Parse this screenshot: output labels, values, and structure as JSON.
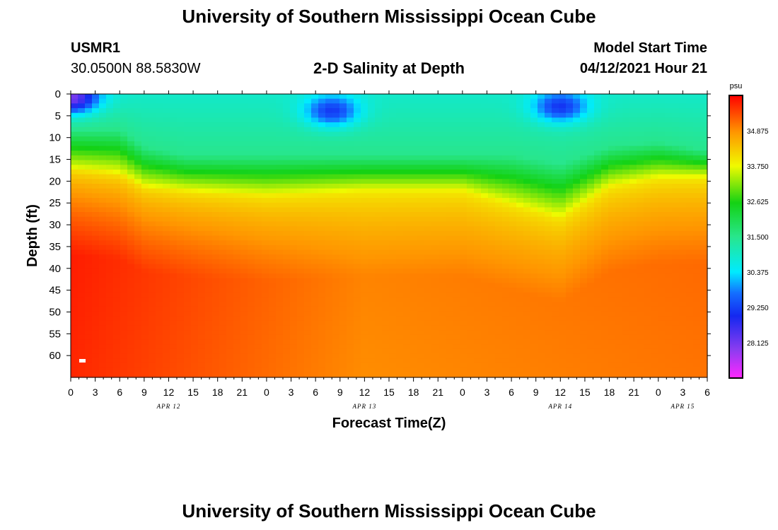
{
  "header": {
    "title": "University of Southern Mississippi Ocean Cube",
    "station_id": "USMR1",
    "coordinates": "30.0500N  88.5830W",
    "subtitle": "2-D Salinity at Depth",
    "model_start_label": "Model Start Time",
    "model_start_value": "04/12/2021 Hour 21"
  },
  "footer": {
    "title": "University of Southern Mississippi Ocean Cube"
  },
  "chart_data": {
    "type": "heatmap",
    "title": "2-D Salinity at Depth",
    "xlabel": "Forecast Time(Z)",
    "ylabel": "Depth (ft)",
    "xlim": [
      0,
      78
    ],
    "ylim": [
      0,
      65
    ],
    "x_ticks": [
      0,
      3,
      6,
      9,
      12,
      15,
      18,
      21,
      24,
      27,
      30,
      33,
      36,
      39,
      42,
      45,
      48,
      51,
      54,
      57,
      60,
      63,
      66,
      69,
      72,
      75,
      78
    ],
    "x_tick_labels": [
      "0",
      "3",
      "6",
      "9",
      "12",
      "15",
      "18",
      "21",
      "0",
      "3",
      "6",
      "9",
      "12",
      "15",
      "18",
      "21",
      "0",
      "3",
      "6",
      "9",
      "12",
      "15",
      "18",
      "21",
      "0",
      "3",
      "6"
    ],
    "day_labels": [
      {
        "x": 12,
        "label": "APR 12"
      },
      {
        "x": 36,
        "label": "APR 13"
      },
      {
        "x": 60,
        "label": "APR 14"
      },
      {
        "x": 75,
        "label": "APR 15"
      }
    ],
    "y_ticks": [
      0,
      5,
      10,
      15,
      20,
      25,
      30,
      35,
      40,
      45,
      50,
      55,
      60
    ],
    "y_tick_labels": [
      "0",
      "5",
      "10",
      "15",
      "20",
      "25",
      "30",
      "35",
      "40",
      "45",
      "50",
      "55",
      "60"
    ],
    "colorbar": {
      "unit": "psu",
      "range": [
        27.0,
        36.0
      ],
      "tick_values": [
        28.125,
        29.25,
        30.375,
        31.5,
        32.625,
        33.75,
        34.875
      ],
      "tick_labels": [
        "28.125",
        "29.250",
        "30.375",
        "31.500",
        "32.625",
        "33.750",
        "34.875"
      ]
    },
    "isohaline_depths_ft": {
      "note": "approximate depth (ft) of salinity contours at each forecast hour",
      "hours": [
        0,
        6,
        9,
        14,
        24,
        36,
        48,
        54,
        60,
        66,
        72,
        78
      ],
      "s31_5": [
        8,
        8,
        12,
        14,
        14,
        14,
        14,
        14,
        16,
        12,
        11,
        13
      ],
      "s33_75": [
        17,
        18,
        21,
        22,
        23,
        22,
        22,
        25,
        28,
        21,
        19,
        19
      ]
    },
    "fresh_cores": [
      {
        "hour": 0,
        "depth_ft": 1,
        "min_psu": 28.3
      },
      {
        "hour": 32,
        "depth_ft": 4,
        "min_psu": 29.3
      },
      {
        "hour": 60,
        "depth_ft": 3,
        "min_psu": 29.3
      }
    ],
    "deep_salinity_psu": {
      "hour_0": 35.9,
      "hour_36": 35.1,
      "hour_78": 35.3
    }
  }
}
